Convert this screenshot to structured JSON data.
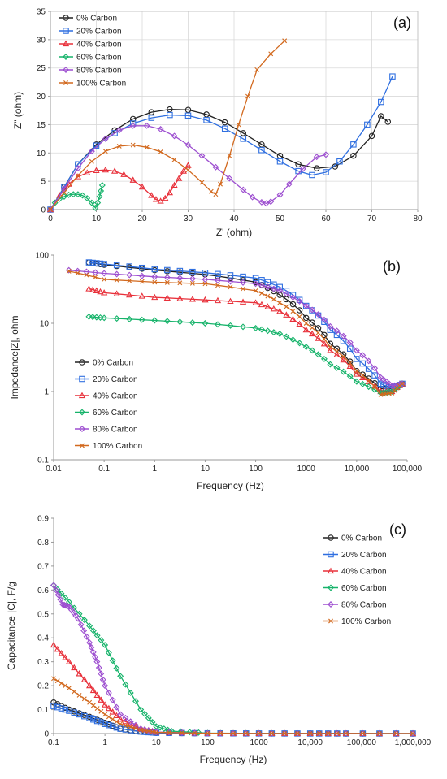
{
  "colors": {
    "0% Carbon": "#222222",
    "20% Carbon": "#2f6fe0",
    "40% Carbon": "#e8303a",
    "60% Carbon": "#16b36a",
    "80% Carbon": "#9d4fd0",
    "100% Carbon": "#d2691e"
  },
  "chart_data": [
    {
      "id": "a",
      "type": "scatter",
      "panel_label": "(a)",
      "xlabel": "Z' (ohm)",
      "ylabel": "Z\" (ohm)",
      "xlim": [
        0,
        80
      ],
      "ylim": [
        0,
        35
      ],
      "xticks": [
        0,
        10,
        20,
        30,
        40,
        50,
        60,
        70,
        80
      ],
      "yticks": [
        0,
        5,
        10,
        15,
        20,
        25,
        30,
        35
      ],
      "grid": true,
      "legend": "top-left",
      "series": [
        {
          "name": "0% Carbon",
          "marker": "circle",
          "x": [
            0,
            3,
            6,
            10,
            14,
            18,
            22,
            26,
            30,
            34,
            38,
            42,
            46,
            50,
            54,
            58,
            62,
            66,
            70,
            72,
            73.5
          ],
          "y": [
            0,
            4,
            8,
            11.5,
            14,
            16,
            17.2,
            17.7,
            17.6,
            16.8,
            15.4,
            13.5,
            11.5,
            9.5,
            8,
            7.3,
            7.6,
            9.5,
            13,
            16.5,
            15.5
          ]
        },
        {
          "name": "20% Carbon",
          "marker": "square",
          "x": [
            0,
            3,
            6,
            10,
            14,
            18,
            22,
            26,
            30,
            34,
            38,
            42,
            46,
            50,
            54,
            57,
            60,
            63,
            66,
            69,
            72,
            74.5
          ],
          "y": [
            0,
            4,
            8,
            11.3,
            13.5,
            15.2,
            16.2,
            16.7,
            16.6,
            15.8,
            14.3,
            12.5,
            10.5,
            8.5,
            6.8,
            6.1,
            6.6,
            8.5,
            11.5,
            15,
            19,
            23.5
          ]
        },
        {
          "name": "40% Carbon",
          "marker": "triangle",
          "x": [
            0,
            2,
            4,
            6,
            8,
            10,
            12,
            14,
            16,
            18,
            20,
            22,
            23,
            24,
            25,
            26,
            27,
            28,
            29,
            30
          ],
          "y": [
            0,
            2.5,
            4.5,
            5.8,
            6.5,
            6.9,
            7.0,
            6.8,
            6.2,
            5.2,
            4.0,
            2.5,
            1.8,
            1.5,
            2.0,
            3.0,
            4.3,
            5.5,
            6.8,
            7.8
          ]
        },
        {
          "name": "60% Carbon",
          "marker": "diamond",
          "x": [
            0,
            1,
            2,
            3,
            4,
            5,
            6,
            7,
            8,
            9,
            9.8,
            10.3,
            10.7,
            11.0,
            11.3
          ],
          "y": [
            0,
            1.2,
            1.9,
            2.3,
            2.6,
            2.7,
            2.7,
            2.5,
            2.0,
            1.2,
            0.3,
            1.2,
            2.3,
            3.3,
            4.3
          ]
        },
        {
          "name": "80% Carbon",
          "marker": "diamond",
          "x": [
            0,
            3,
            6,
            9,
            12,
            15,
            18,
            21,
            24,
            27,
            30,
            33,
            36,
            39,
            42,
            44,
            46,
            47,
            48,
            50,
            52,
            55,
            58,
            60
          ],
          "y": [
            0,
            3.7,
            7.3,
            10.3,
            12.5,
            14,
            14.8,
            14.8,
            14.2,
            13,
            11.4,
            9.5,
            7.5,
            5.5,
            3.5,
            2.2,
            1.3,
            1.1,
            1.4,
            2.6,
            4.5,
            7.2,
            9.3,
            9.7
          ]
        },
        {
          "name": "100% Carbon",
          "marker": "x",
          "x": [
            0,
            3,
            6,
            9,
            12,
            15,
            18,
            21,
            24,
            27,
            30,
            33,
            35,
            36,
            37,
            39,
            41,
            43,
            45,
            48,
            51
          ],
          "y": [
            0,
            3,
            6,
            8.5,
            10.3,
            11.2,
            11.4,
            11.0,
            10.2,
            8.8,
            7.0,
            4.8,
            3.2,
            2.7,
            4.5,
            9.5,
            15,
            20,
            24.7,
            27.5,
            29.8
          ]
        }
      ]
    },
    {
      "id": "b",
      "type": "line",
      "panel_label": "(b)",
      "xlabel": "Frequency (Hz)",
      "ylabel": "Impedance|Z|, ohm",
      "xscale": "log",
      "yscale": "log",
      "xlim": [
        0.01,
        100000
      ],
      "ylim": [
        0.1,
        100
      ],
      "xtick_values": [
        0.01,
        0.1,
        1,
        10,
        100,
        1000,
        10000,
        100000
      ],
      "xtick_labels": [
        "0.01",
        "0.1",
        "1",
        "10",
        "100",
        "1000",
        "10,000",
        "100,000"
      ],
      "ytick_values": [
        0.1,
        1,
        10,
        100
      ],
      "ytick_labels": [
        "0.1",
        "1",
        "10",
        "100"
      ],
      "grid": false,
      "legend": "bottom-left",
      "series": [
        {
          "name": "0% Carbon",
          "marker": "circle",
          "x": [
            0.05,
            0.1,
            1,
            10,
            100,
            300,
            1000,
            3000,
            10000,
            30000,
            50000,
            80000
          ],
          "y": [
            78,
            72,
            60,
            52,
            40,
            26,
            12,
            5,
            2,
            1.1,
            1.1,
            1.3
          ]
        },
        {
          "name": "20% Carbon",
          "marker": "square",
          "x": [
            0.05,
            0.1,
            1,
            10,
            100,
            300,
            1000,
            3000,
            10000,
            30000,
            50000,
            80000
          ],
          "y": [
            78,
            74,
            62,
            55,
            46,
            34,
            18,
            8,
            3,
            1.3,
            1.1,
            1.3
          ]
        },
        {
          "name": "40% Carbon",
          "marker": "triangle",
          "x": [
            0.05,
            0.1,
            1,
            10,
            100,
            300,
            1000,
            3000,
            10000,
            30000,
            50000,
            80000
          ],
          "y": [
            32,
            28,
            24,
            22,
            20,
            15,
            8,
            4,
            1.8,
            1.0,
            1.0,
            1.3
          ]
        },
        {
          "name": "60% Carbon",
          "marker": "diamond",
          "x": [
            0.05,
            0.1,
            1,
            10,
            100,
            300,
            1000,
            3000,
            10000,
            30000,
            50000,
            80000
          ],
          "y": [
            12.5,
            12,
            11,
            10,
            8.5,
            7,
            4.5,
            2.5,
            1.4,
            0.95,
            1.0,
            1.3
          ]
        },
        {
          "name": "80% Carbon",
          "marker": "diamond",
          "x": [
            0.02,
            0.1,
            1,
            10,
            100,
            300,
            1000,
            3000,
            10000,
            30000,
            50000,
            80000
          ],
          "y": [
            60,
            54,
            48,
            44,
            38,
            30,
            18,
            9,
            4,
            1.6,
            1.2,
            1.3
          ]
        },
        {
          "name": "100% Carbon",
          "marker": "x",
          "x": [
            0.02,
            0.1,
            1,
            10,
            100,
            300,
            1000,
            3000,
            10000,
            30000,
            50000,
            80000
          ],
          "y": [
            58,
            44,
            40,
            38,
            30,
            20,
            10,
            4.5,
            2,
            0.9,
            0.95,
            1.3
          ]
        }
      ]
    },
    {
      "id": "c",
      "type": "line",
      "panel_label": "(c)",
      "xlabel": "Frequency (Hz)",
      "ylabel": "Capacitance |C|, F/g",
      "xscale": "log",
      "xlim": [
        0.1,
        1000000
      ],
      "ylim": [
        0,
        0.9
      ],
      "xtick_values": [
        0.1,
        1,
        10,
        100,
        1000,
        10000,
        100000,
        1000000
      ],
      "xtick_labels": [
        "0.1",
        "1",
        "10",
        "100",
        "1000",
        "10,000",
        "100,000",
        "1,000,000"
      ],
      "yticks": [
        0,
        0.1,
        0.2,
        0.3,
        0.4,
        0.5,
        0.6,
        0.7,
        0.8,
        0.9
      ],
      "grid": false,
      "legend": "top-right",
      "series": [
        {
          "name": "0% Carbon",
          "marker": "circle",
          "x": [
            0.1,
            0.2,
            0.5,
            1,
            2,
            5,
            10,
            100,
            1000,
            10000,
            50000,
            1000000
          ],
          "y": [
            0.13,
            0.1,
            0.07,
            0.045,
            0.02,
            0.008,
            0.003,
            0.001,
            0.0005,
            0.0003,
            0.0002,
            0.0001
          ]
        },
        {
          "name": "20% Carbon",
          "marker": "square",
          "x": [
            0.1,
            0.2,
            0.5,
            1,
            2,
            5,
            10,
            100,
            1000,
            10000,
            50000,
            1000000
          ],
          "y": [
            0.115,
            0.095,
            0.065,
            0.04,
            0.02,
            0.008,
            0.003,
            0.001,
            0.0005,
            0.0003,
            0.0002,
            0.0001
          ]
        },
        {
          "name": "40% Carbon",
          "marker": "triangle",
          "x": [
            0.1,
            0.2,
            0.5,
            1,
            2,
            5,
            10,
            100,
            1000,
            10000,
            50000,
            1000000
          ],
          "y": [
            0.37,
            0.3,
            0.2,
            0.12,
            0.06,
            0.02,
            0.006,
            0.001,
            0.0005,
            0.0003,
            0.0002,
            0.0001
          ]
        },
        {
          "name": "60% Carbon",
          "marker": "diamond",
          "x": [
            0.1,
            0.2,
            0.5,
            1,
            2,
            5,
            10,
            20,
            100,
            1000,
            10000,
            50000,
            1000000
          ],
          "y": [
            0.62,
            0.55,
            0.45,
            0.37,
            0.24,
            0.1,
            0.03,
            0.01,
            0.002,
            0.001,
            0.0005,
            0.0002,
            0.0001
          ]
        },
        {
          "name": "80% Carbon",
          "marker": "diamond",
          "x": [
            0.1,
            0.15,
            0.2,
            0.3,
            0.5,
            0.7,
            1,
            2,
            5,
            10,
            100,
            1000,
            10000,
            50000,
            1000000
          ],
          "y": [
            0.62,
            0.54,
            0.53,
            0.48,
            0.38,
            0.3,
            0.2,
            0.08,
            0.02,
            0.006,
            0.001,
            0.0005,
            0.0003,
            0.0002,
            0.0001
          ]
        },
        {
          "name": "100% Carbon",
          "marker": "x",
          "x": [
            0.1,
            0.2,
            0.5,
            1,
            2,
            5,
            10,
            100,
            1000,
            10000,
            50000,
            1000000
          ],
          "y": [
            0.23,
            0.19,
            0.13,
            0.08,
            0.04,
            0.015,
            0.005,
            0.001,
            0.0005,
            0.0003,
            0.0002,
            0.0001
          ]
        }
      ]
    }
  ]
}
